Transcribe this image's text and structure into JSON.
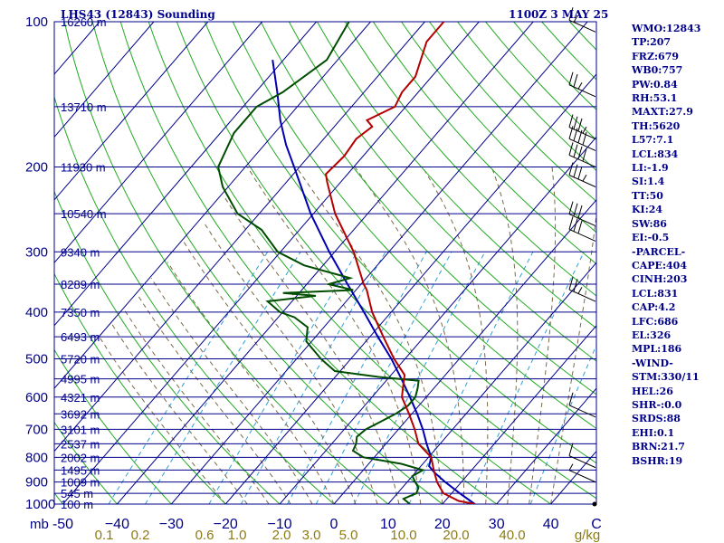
{
  "header": {
    "station": "LHS43 (12843) Sounding",
    "time": "1100Z  3 MAY 25"
  },
  "indices": [
    "WMO:12843",
    "TP:207",
    "FRZ:679",
    "WB0:757",
    "PW:0.84",
    "RH:53.1",
    "MAXT:27.9",
    "TH:5620",
    "L57:7.1",
    "LCL:834",
    "LI:-1.9",
    "SI:1.4",
    "TT:50",
    "KI:24",
    "SW:86",
    "EI:-0.5",
    "-PARCEL-",
    "CAPE:404",
    "CINH:203",
    "LCL:831",
    "CAP:4.2",
    "LFC:686",
    "EL:326",
    "MPL:186",
    "-WIND-",
    "STM:330/11",
    "HEL:26",
    "SHR-:0.0",
    "SRDS:88",
    "EHI:0.1",
    "BRN:21.7",
    "BSHR:19"
  ],
  "colors": {
    "axis_text": "#00008b",
    "isobar": "#00008b",
    "isotherm": "#00008b",
    "dry_adiabat": "#22aa22",
    "moist_adiabat": "#7a6a4a",
    "mixing_ratio": "#2f9fd8",
    "temperature": "#b40000",
    "dewpoint": "#004d00",
    "parcel": "#0000b0",
    "mixing_ratio_text": "#8c7a12",
    "wind_barb": "#000000"
  },
  "chart_data": {
    "type": "skew-t",
    "pressure_axis": {
      "label": "mb",
      "ticks": [
        100,
        200,
        300,
        400,
        500,
        600,
        700,
        800,
        900,
        1000
      ],
      "range": [
        1000,
        100
      ],
      "scale": "log"
    },
    "temperature_axis": {
      "ticks": [
        -50,
        -40,
        -30,
        -20,
        -10,
        0,
        10,
        20,
        30,
        40
      ],
      "tick_labels": [
        "-50",
        "−40",
        "−30",
        "−20",
        "−10",
        "0",
        "10",
        "20",
        "30",
        "40"
      ],
      "unit": "C",
      "range": [
        -50,
        50
      ]
    },
    "height_labels": [
      {
        "p": 100,
        "label": "16260 m"
      },
      {
        "p": 150,
        "label": "13710 m"
      },
      {
        "p": 200,
        "label": "11930 m"
      },
      {
        "p": 250,
        "label": "10540 m"
      },
      {
        "p": 300,
        "label": "9340 m"
      },
      {
        "p": 350,
        "label": "8289 m"
      },
      {
        "p": 400,
        "label": "7350 m"
      },
      {
        "p": 450,
        "label": "6493 m"
      },
      {
        "p": 500,
        "label": "5720 m"
      },
      {
        "p": 550,
        "label": "4995 m"
      },
      {
        "p": 600,
        "label": "4321 m"
      },
      {
        "p": 650,
        "label": "3692 m"
      },
      {
        "p": 700,
        "label": "3101 m"
      },
      {
        "p": 750,
        "label": "2537 m"
      },
      {
        "p": 800,
        "label": "2002 m"
      },
      {
        "p": 850,
        "label": "1495 m"
      },
      {
        "p": 900,
        "label": "1009 m"
      },
      {
        "p": 950,
        "label": "545 m"
      },
      {
        "p": 1000,
        "label": "100 m"
      }
    ],
    "mixing_ratio_labels": {
      "unit": "g/kg",
      "values": [
        "0.1",
        "0.2",
        "0.6",
        "1.0",
        "2.0",
        "3.0",
        "5.0",
        "10.0",
        "20.0",
        "40.0"
      ]
    },
    "series": [
      {
        "name": "Temperature",
        "points": [
          [
            1000,
            26.0
          ],
          [
            985,
            22.5
          ],
          [
            950,
            18.5
          ],
          [
            925,
            17.0
          ],
          [
            900,
            15.5
          ],
          [
            850,
            13.0
          ],
          [
            800,
            10.5
          ],
          [
            750,
            6.0
          ],
          [
            700,
            3.0
          ],
          [
            650,
            -0.5
          ],
          [
            600,
            -4.5
          ],
          [
            560,
            -6.5
          ],
          [
            540,
            -7.5
          ],
          [
            500,
            -12.0
          ],
          [
            450,
            -17.5
          ],
          [
            400,
            -23.5
          ],
          [
            360,
            -28.0
          ],
          [
            350,
            -29.5
          ],
          [
            300,
            -36.5
          ],
          [
            250,
            -46.0
          ],
          [
            215,
            -52.5
          ],
          [
            207,
            -54.0
          ],
          [
            190,
            -53.5
          ],
          [
            175,
            -54.0
          ],
          [
            165,
            -53.0
          ],
          [
            160,
            -55.0
          ],
          [
            150,
            -52.0
          ],
          [
            140,
            -53.0
          ],
          [
            130,
            -53.0
          ],
          [
            110,
            -56.5
          ],
          [
            100,
            -56.5
          ]
        ]
      },
      {
        "name": "Dewpoint",
        "points": [
          [
            1000,
            14.0
          ],
          [
            975,
            12.0
          ],
          [
            950,
            13.5
          ],
          [
            925,
            13.0
          ],
          [
            900,
            11.5
          ],
          [
            875,
            10.0
          ],
          [
            850,
            11.0
          ],
          [
            825,
            6.0
          ],
          [
            800,
            -2.0
          ],
          [
            775,
            -5.0
          ],
          [
            750,
            -5.5
          ],
          [
            725,
            -6.5
          ],
          [
            700,
            -6.0
          ],
          [
            675,
            -4.5
          ],
          [
            650,
            -3.0
          ],
          [
            625,
            -2.0
          ],
          [
            600,
            -2.0
          ],
          [
            575,
            -3.0
          ],
          [
            555,
            -4.0
          ],
          [
            545,
            -12.0
          ],
          [
            530,
            -21.0
          ],
          [
            500,
            -25.5
          ],
          [
            460,
            -31.0
          ],
          [
            430,
            -33.0
          ],
          [
            410,
            -37.0
          ],
          [
            400,
            -40.5
          ],
          [
            380,
            -44.5
          ],
          [
            370,
            -36.5
          ],
          [
            365,
            -43.0
          ],
          [
            360,
            -30.5
          ],
          [
            350,
            -36.0
          ],
          [
            340,
            -33.0
          ],
          [
            320,
            -43.5
          ],
          [
            300,
            -50.5
          ],
          [
            270,
            -57.0
          ],
          [
            250,
            -64.0
          ],
          [
            220,
            -71.0
          ],
          [
            200,
            -75.0
          ],
          [
            170,
            -77.5
          ],
          [
            150,
            -77.5
          ],
          [
            140,
            -75.0
          ],
          [
            120,
            -72.0
          ],
          [
            100,
            -74.0
          ]
        ]
      },
      {
        "name": "Parcel",
        "points": [
          [
            1000,
            26.0
          ],
          [
            950,
            21.5
          ],
          [
            900,
            17.0
          ],
          [
            860,
            13.5
          ],
          [
            834,
            11.5
          ],
          [
            800,
            10.5
          ],
          [
            750,
            7.5
          ],
          [
            700,
            4.5
          ],
          [
            650,
            1.0
          ],
          [
            600,
            -3.0
          ],
          [
            550,
            -7.5
          ],
          [
            500,
            -12.5
          ],
          [
            450,
            -18.5
          ],
          [
            400,
            -25.0
          ],
          [
            350,
            -32.5
          ],
          [
            300,
            -41.0
          ],
          [
            250,
            -50.5
          ],
          [
            200,
            -61.0
          ],
          [
            180,
            -66.0
          ],
          [
            160,
            -71.0
          ],
          [
            140,
            -76.0
          ],
          [
            120,
            -82.0
          ]
        ]
      }
    ],
    "wind_barbs": [
      {
        "p": 105,
        "spd": 15
      },
      {
        "p": 143,
        "spd": 25
      },
      {
        "p": 175,
        "spd": 35
      },
      {
        "p": 185,
        "spd": 40
      },
      {
        "p": 200,
        "spd": 40
      },
      {
        "p": 220,
        "spd": 35
      },
      {
        "p": 265,
        "spd": 30
      },
      {
        "p": 285,
        "spd": 30
      },
      {
        "p": 380,
        "spd": 25
      },
      {
        "p": 660,
        "spd": 10
      },
      {
        "p": 840,
        "spd": 10
      },
      {
        "p": 900,
        "spd": 5
      }
    ]
  }
}
